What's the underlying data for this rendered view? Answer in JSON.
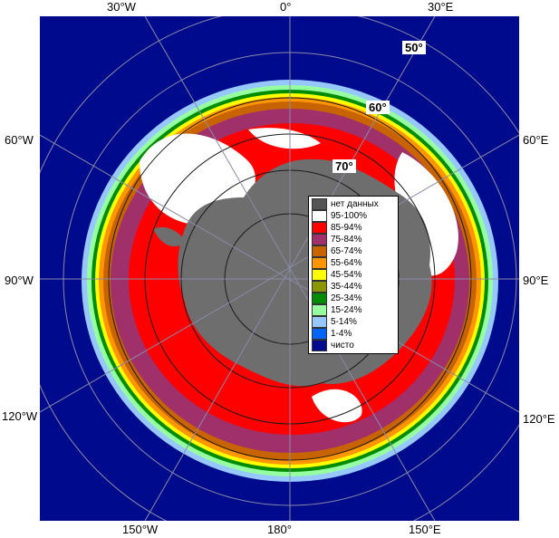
{
  "map": {
    "colors": {
      "ocean": "#000a8c",
      "land": "#6e6e6e",
      "graticule": "#8a8aa8",
      "graticule_inner": "#1a1a1a"
    },
    "longitude_labels": {
      "top": [
        "30°W",
        "0°",
        "30°E"
      ],
      "left": [
        "60°W",
        "90°W",
        "120°W"
      ],
      "right": [
        "60°E",
        "90°E",
        "120°E"
      ],
      "bottom": [
        "150°W",
        "180°",
        "150°E"
      ]
    },
    "latitude_labels": [
      "50°",
      "60°",
      "70°"
    ],
    "legend": [
      {
        "label": "нет данных",
        "color": "#555555"
      },
      {
        "label": "95-100%",
        "color": "#ffffff"
      },
      {
        "label": "85-94%",
        "color": "#ff0000"
      },
      {
        "label": "75-84%",
        "color": "#a0306a"
      },
      {
        "label": "65-74%",
        "color": "#c86400"
      },
      {
        "label": "55-64%",
        "color": "#ff9600"
      },
      {
        "label": "45-54%",
        "color": "#ffff00"
      },
      {
        "label": "35-44%",
        "color": "#8c9600"
      },
      {
        "label": "25-34%",
        "color": "#008c00"
      },
      {
        "label": "15-24%",
        "color": "#96ffa0"
      },
      {
        "label": "5-14%",
        "color": "#96c8ff"
      },
      {
        "label": "1-4%",
        "color": "#0064ff"
      },
      {
        "label": "чисто",
        "color": "#000a8c"
      }
    ]
  }
}
